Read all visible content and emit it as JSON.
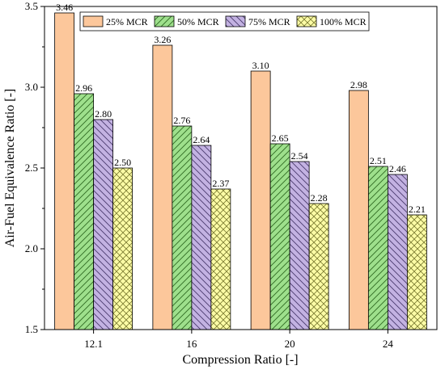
{
  "chart_data": {
    "type": "bar",
    "xlabel": "Compression Ratio [-]",
    "ylabel": "Air-Fuel Equivalence Ratio [-]",
    "categories": [
      "12.1",
      "16",
      "20",
      "24"
    ],
    "ylim": [
      1.5,
      3.5
    ],
    "yticks": [
      "1.5",
      "2.0",
      "2.5",
      "3.0",
      "3.5"
    ],
    "legend_position": "top",
    "grid": false,
    "series": [
      {
        "name": "25% MCR",
        "values": [
          3.46,
          3.26,
          3.1,
          2.98
        ],
        "labels": [
          "3.46",
          "3.26",
          "3.10",
          "2.98"
        ],
        "color": "#fcc79b",
        "pattern": "none"
      },
      {
        "name": "50% MCR",
        "values": [
          2.96,
          2.76,
          2.65,
          2.51
        ],
        "labels": [
          "2.96",
          "2.76",
          "2.65",
          "2.51"
        ],
        "color": "#9ee08c",
        "pattern": "diagonal-up"
      },
      {
        "name": "75% MCR",
        "values": [
          2.8,
          2.64,
          2.54,
          2.46
        ],
        "labels": [
          "2.80",
          "2.64",
          "2.54",
          "2.46"
        ],
        "color": "#c3b2e2",
        "pattern": "diagonal-down"
      },
      {
        "name": "100% MCR",
        "values": [
          2.5,
          2.37,
          2.28,
          2.21
        ],
        "labels": [
          "2.50",
          "2.37",
          "2.28",
          "2.21"
        ],
        "color": "#fcfca6",
        "pattern": "crosshatch"
      }
    ]
  }
}
